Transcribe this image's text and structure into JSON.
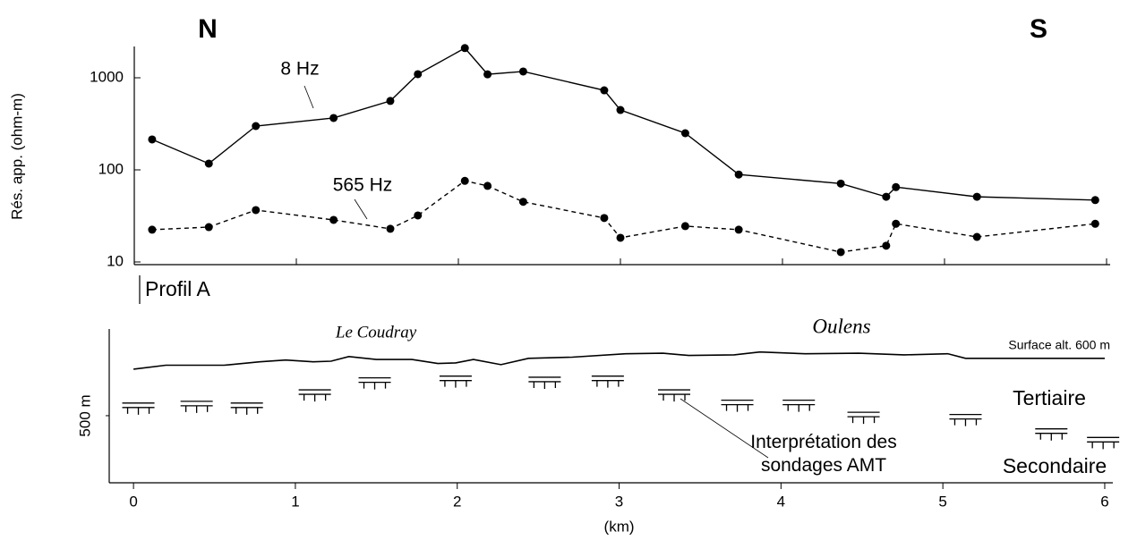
{
  "chart_data": [
    {
      "type": "line",
      "log_y": true,
      "annotations": [
        "N",
        "S"
      ],
      "ylabel": "Rés. app. (ohm-m)",
      "x": [
        0.11,
        0.46,
        0.75,
        1.23,
        1.58,
        1.75,
        2.04,
        2.18,
        2.4,
        2.9,
        3.0,
        3.4,
        3.73,
        4.36,
        4.64,
        4.7,
        5.2,
        5.93
      ],
      "series": [
        {
          "name": "8 Hz",
          "color": "#000000",
          "linestyle": "solid",
          "values": [
            214,
            117,
            299,
            366,
            560,
            1094,
            2100,
            1090,
            1170,
            731,
            447,
            250,
            89,
            71,
            51,
            65,
            51,
            47
          ]
        },
        {
          "name": "565 Hz",
          "color": "#000000",
          "linestyle": "dashed",
          "values": [
            22.4,
            23.9,
            36.6,
            28.6,
            22.9,
            32,
            76,
            67,
            45,
            30,
            18.3,
            24.5,
            22.4,
            12.8,
            15,
            26,
            18.7,
            26
          ]
        }
      ],
      "xlim": [
        0,
        6
      ],
      "xticks": [
        0,
        1,
        2,
        3,
        4,
        5,
        6
      ],
      "ylim": [
        10,
        2500
      ],
      "yticks": [
        10,
        100,
        1000
      ]
    },
    {
      "type": "profile",
      "title": "Profil A",
      "xlabel": "(km)",
      "annotations": [
        "Le Coudray",
        "Oulens",
        "Tertiaire",
        "Secondaire"
      ],
      "surface": {
        "name": "Surface alt. 600 m",
        "color": "#000000",
        "x": [
          0,
          0.2,
          0.56,
          0.78,
          0.94,
          1.11,
          1.22,
          1.33,
          1.5,
          1.72,
          1.88,
          1.99,
          2.1,
          2.27,
          2.44,
          2.71,
          3.04,
          3.27,
          3.43,
          3.71,
          3.87,
          4.15,
          4.48,
          4.76,
          5.03,
          5.14,
          6.0
        ],
        "values": [
          581,
          588,
          588,
          594,
          597,
          594,
          595,
          603,
          598,
          598,
          591,
          592,
          598,
          589,
          600,
          602,
          608,
          609,
          605,
          606,
          611,
          608,
          609,
          606,
          608,
          600,
          600
        ]
      },
      "soundings": {
        "name": "Interprétation des sondages AMT",
        "color": "#000000",
        "x": [
          0.03,
          0.39,
          0.7,
          1.12,
          1.49,
          1.99,
          2.54,
          2.93,
          3.34,
          3.73,
          4.11,
          4.51,
          5.14,
          5.67,
          5.99
        ],
        "values": [
          522,
          525,
          522,
          545,
          566,
          569,
          567,
          569,
          545,
          527,
          527,
          506,
          502,
          477,
          462
        ]
      },
      "xlim": [
        -0.15,
        6.05
      ],
      "xticks": [
        0,
        1,
        2,
        3,
        4,
        5,
        6
      ],
      "ylim": [
        383,
        648
      ],
      "yticks": [
        {
          "value": 500,
          "label": "500 m"
        }
      ]
    }
  ]
}
